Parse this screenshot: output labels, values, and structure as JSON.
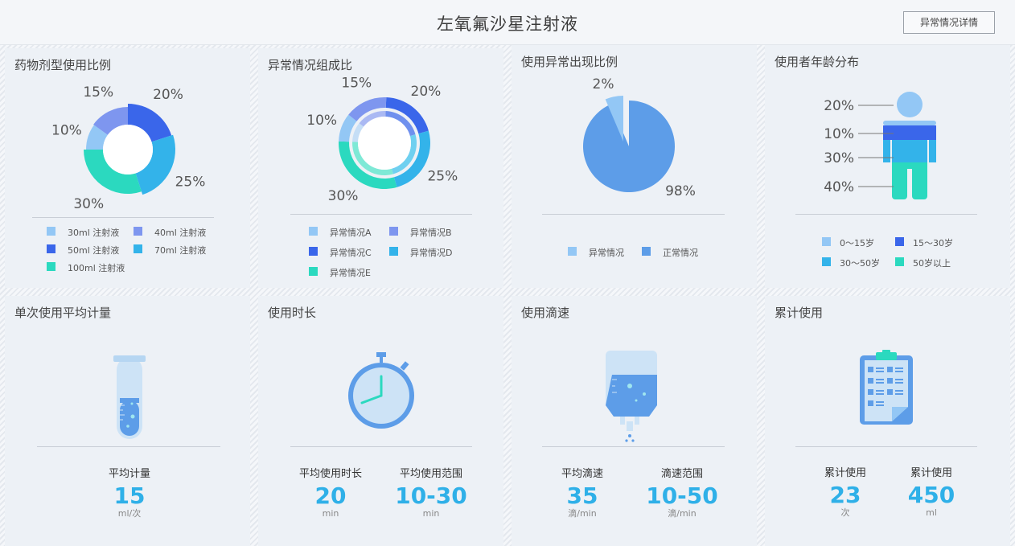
{
  "header": {
    "title": "左氧氟沙星注射液",
    "detail_button": "异常情况详情"
  },
  "colors": {
    "light_blue": "#93c7f5",
    "periwinkle": "#7e96ef",
    "royal_blue": "#3a66ea",
    "sky_blue": "#33b3ea",
    "teal": "#2bd9bf",
    "pie_blue": "#5d9de8",
    "stat_value": "#2fb0e8"
  },
  "panels": {
    "dosage_form": {
      "title": "药物剂型使用比例",
      "legend": [
        {
          "label": "30ml 注射液",
          "color": "#93c7f5"
        },
        {
          "label": "40ml 注射液",
          "color": "#7e96ef"
        },
        {
          "label": "50ml 注射液",
          "color": "#3a66ea"
        },
        {
          "label": "70ml 注射液",
          "color": "#33b3ea"
        },
        {
          "label": "100ml 注射液",
          "color": "#2bd9bf"
        }
      ]
    },
    "abnormal_composition": {
      "title": "异常情况组成比",
      "legend": [
        {
          "label": "异常情况A",
          "color": "#93c7f5"
        },
        {
          "label": "异常情况B",
          "color": "#7e96ef"
        },
        {
          "label": "异常情况C",
          "color": "#3a66ea"
        },
        {
          "label": "异常情况D",
          "color": "#33b3ea"
        },
        {
          "label": "异常情况E",
          "color": "#2bd9bf"
        }
      ]
    },
    "abnormal_ratio": {
      "title": "使用异常出现比例",
      "legend": [
        {
          "label": "异常情况",
          "color": "#93c7f5"
        },
        {
          "label": "正常情况",
          "color": "#5d9de8"
        }
      ]
    },
    "age_distribution": {
      "title": "使用者年龄分布",
      "legend": [
        {
          "label": "0～15岁",
          "color": "#93c7f5"
        },
        {
          "label": "15～30岁",
          "color": "#3a66ea"
        },
        {
          "label": "30～50岁",
          "color": "#33b3ea"
        },
        {
          "label": "50岁以上",
          "color": "#2bd9bf"
        }
      ]
    },
    "avg_dose": {
      "title": "单次使用平均计量",
      "stats": [
        {
          "label": "平均计量",
          "value": "15",
          "unit": "ml/次"
        }
      ]
    },
    "duration": {
      "title": "使用时长",
      "stats": [
        {
          "label": "平均使用时长",
          "value": "20",
          "unit": "min"
        },
        {
          "label": "平均使用范围",
          "value": "10-30",
          "unit": "min"
        }
      ]
    },
    "drip_rate": {
      "title": "使用滴速",
      "stats": [
        {
          "label": "平均滴速",
          "value": "35",
          "unit": "滴/min"
        },
        {
          "label": "滴速范围",
          "value": "10-50",
          "unit": "滴/min"
        }
      ]
    },
    "cumulative": {
      "title": "累计使用",
      "stats": [
        {
          "label": "累计使用",
          "value": "23",
          "unit": "次"
        },
        {
          "label": "累计使用",
          "value": "450",
          "unit": "ml"
        }
      ]
    }
  },
  "chart_data": [
    {
      "type": "pie",
      "title": "药物剂型使用比例",
      "categories": [
        "30ml 注射液",
        "40ml 注射液",
        "50ml 注射液",
        "70ml 注射液",
        "100ml 注射液"
      ],
      "values": [
        10,
        15,
        20,
        25,
        30
      ],
      "value_labels": [
        "10%",
        "15%",
        "20%",
        "25%",
        "30%"
      ],
      "donut": true
    },
    {
      "type": "pie",
      "title": "异常情况组成比",
      "categories": [
        "异常情况A",
        "异常情况B",
        "异常情况C",
        "异常情况D",
        "异常情况E"
      ],
      "values": [
        10,
        15,
        20,
        25,
        30
      ],
      "value_labels": [
        "10%",
        "15%",
        "20%",
        "25%",
        "30%"
      ],
      "donut": true
    },
    {
      "type": "pie",
      "title": "使用异常出现比例",
      "categories": [
        "异常情况",
        "正常情况"
      ],
      "values": [
        2,
        98
      ],
      "value_labels": [
        "2%",
        "98%"
      ]
    },
    {
      "type": "bar",
      "title": "使用者年龄分布",
      "categories": [
        "0～15岁",
        "15～30岁",
        "30～50岁",
        "50岁以上"
      ],
      "values": [
        20,
        10,
        30,
        40
      ],
      "value_labels": [
        "20%",
        "10%",
        "30%",
        "40%"
      ]
    }
  ]
}
